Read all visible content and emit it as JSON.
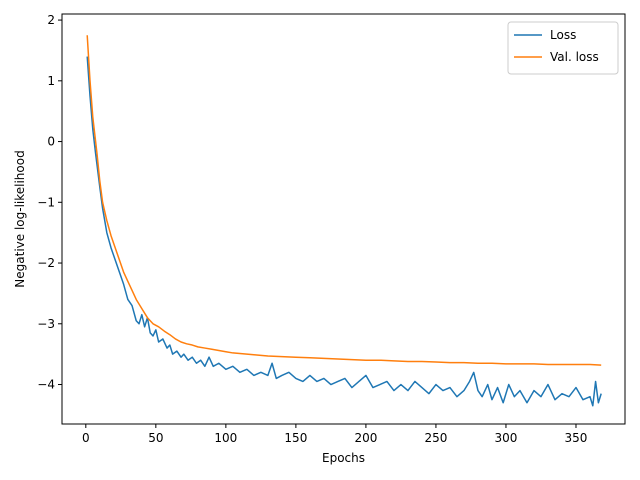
{
  "chart_data": {
    "type": "line",
    "xlabel": "Epochs",
    "ylabel": "Negative log-likelihood",
    "xlim": [
      -17,
      385
    ],
    "ylim": [
      -4.65,
      2.1
    ],
    "x_ticks": [
      0,
      50,
      100,
      150,
      200,
      250,
      300,
      350
    ],
    "x_tick_labels": [
      "0",
      "50",
      "100",
      "150",
      "200",
      "250",
      "300",
      "350"
    ],
    "y_ticks": [
      -4,
      -3,
      -2,
      -1,
      0,
      1,
      2
    ],
    "y_tick_labels": [
      "−4",
      "−3",
      "−2",
      "−1",
      "0",
      "1",
      "2"
    ],
    "grid": false,
    "legend_position": "top-right",
    "series": [
      {
        "name": "Loss",
        "color": "#1f77b4",
        "x": [
          1,
          3,
          5,
          7,
          10,
          12,
          15,
          18,
          21,
          24,
          27,
          30,
          33,
          36,
          38,
          40,
          42,
          44,
          46,
          48,
          50,
          52,
          55,
          58,
          60,
          62,
          65,
          68,
          70,
          73,
          76,
          79,
          82,
          85,
          88,
          91,
          95,
          100,
          105,
          110,
          115,
          120,
          125,
          130,
          133,
          136,
          140,
          145,
          150,
          155,
          160,
          165,
          170,
          175,
          180,
          185,
          190,
          195,
          200,
          205,
          210,
          215,
          220,
          225,
          230,
          235,
          240,
          245,
          250,
          255,
          260,
          265,
          270,
          274,
          277,
          280,
          283,
          287,
          290,
          294,
          298,
          302,
          306,
          310,
          315,
          320,
          325,
          330,
          335,
          340,
          345,
          350,
          355,
          360,
          362,
          364,
          366,
          368
        ],
        "y": [
          1.4,
          0.75,
          0.2,
          -0.2,
          -0.75,
          -1.1,
          -1.5,
          -1.75,
          -1.95,
          -2.15,
          -2.35,
          -2.6,
          -2.7,
          -2.95,
          -3.0,
          -2.85,
          -3.05,
          -2.9,
          -3.15,
          -3.2,
          -3.1,
          -3.3,
          -3.25,
          -3.4,
          -3.35,
          -3.5,
          -3.45,
          -3.55,
          -3.5,
          -3.6,
          -3.55,
          -3.65,
          -3.6,
          -3.7,
          -3.55,
          -3.7,
          -3.65,
          -3.75,
          -3.7,
          -3.8,
          -3.75,
          -3.85,
          -3.8,
          -3.85,
          -3.65,
          -3.9,
          -3.85,
          -3.8,
          -3.9,
          -3.95,
          -3.85,
          -3.95,
          -3.9,
          -4.0,
          -3.95,
          -3.9,
          -4.05,
          -3.95,
          -3.85,
          -4.05,
          -4.0,
          -3.95,
          -4.1,
          -4.0,
          -4.1,
          -3.95,
          -4.05,
          -4.15,
          -4.0,
          -4.1,
          -4.05,
          -4.2,
          -4.1,
          -3.95,
          -3.8,
          -4.1,
          -4.2,
          -4.0,
          -4.25,
          -4.05,
          -4.3,
          -4.0,
          -4.2,
          -4.1,
          -4.3,
          -4.1,
          -4.2,
          -4.0,
          -4.25,
          -4.15,
          -4.2,
          -4.05,
          -4.25,
          -4.2,
          -4.35,
          -3.95,
          -4.3,
          -4.15
        ]
      },
      {
        "name": "Val. loss",
        "color": "#ff7f0e",
        "x": [
          1,
          3,
          5,
          8,
          10,
          12,
          15,
          18,
          21,
          24,
          27,
          30,
          33,
          36,
          40,
          44,
          48,
          52,
          56,
          60,
          64,
          68,
          72,
          76,
          80,
          85,
          90,
          95,
          100,
          105,
          110,
          115,
          120,
          125,
          130,
          140,
          150,
          160,
          170,
          180,
          190,
          200,
          210,
          220,
          230,
          240,
          250,
          260,
          270,
          280,
          290,
          300,
          310,
          320,
          330,
          340,
          350,
          360,
          368
        ],
        "y": [
          1.75,
          1.0,
          0.4,
          -0.2,
          -0.65,
          -1.0,
          -1.3,
          -1.55,
          -1.75,
          -1.95,
          -2.15,
          -2.3,
          -2.45,
          -2.6,
          -2.75,
          -2.9,
          -3.0,
          -3.05,
          -3.12,
          -3.18,
          -3.25,
          -3.3,
          -3.33,
          -3.35,
          -3.38,
          -3.4,
          -3.42,
          -3.44,
          -3.46,
          -3.48,
          -3.49,
          -3.5,
          -3.51,
          -3.52,
          -3.53,
          -3.54,
          -3.55,
          -3.56,
          -3.57,
          -3.58,
          -3.59,
          -3.6,
          -3.6,
          -3.61,
          -3.62,
          -3.62,
          -3.63,
          -3.64,
          -3.64,
          -3.65,
          -3.65,
          -3.66,
          -3.66,
          -3.66,
          -3.67,
          -3.67,
          -3.67,
          -3.67,
          -3.68
        ]
      }
    ]
  }
}
